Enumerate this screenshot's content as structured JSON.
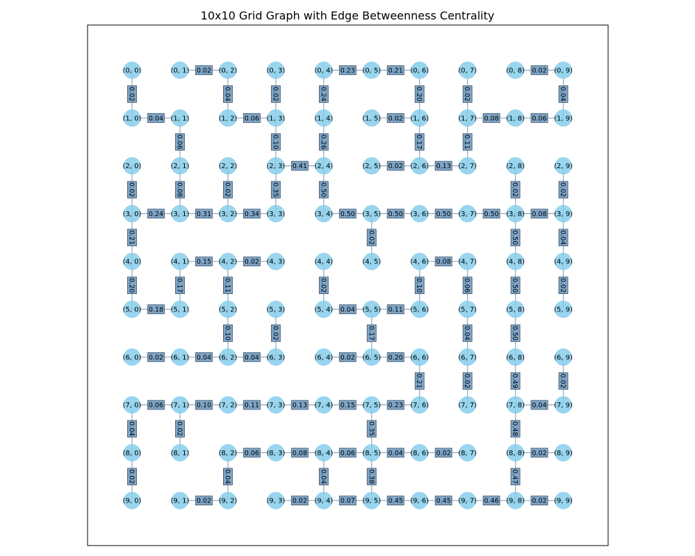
{
  "title": "10x10 Grid Graph with Edge Betweenness Centrality",
  "colors": {
    "node": "#87ceeb",
    "edge": "#8fa8bf",
    "label_box": "#7fa6c9",
    "frame": "#000000"
  },
  "nodes": [
    "(0, 0)",
    "(0, 1)",
    "(0, 2)",
    "(0, 3)",
    "(0, 4)",
    "(0, 5)",
    "(0, 6)",
    "(0, 7)",
    "(0, 8)",
    "(0, 9)",
    "(1, 0)",
    "(1, 1)",
    "(1, 2)",
    "(1, 3)",
    "(1, 4)",
    "(1, 5)",
    "(1, 6)",
    "(1, 7)",
    "(1, 8)",
    "(1, 9)",
    "(2, 0)",
    "(2, 1)",
    "(2, 2)",
    "(2, 3)",
    "(2, 4)",
    "(2, 5)",
    "(2, 6)",
    "(2, 7)",
    "(2, 8)",
    "(2, 9)",
    "(3, 0)",
    "(3, 1)",
    "(3, 2)",
    "(3, 3)",
    "(3, 4)",
    "(3, 5)",
    "(3, 6)",
    "(3, 7)",
    "(3, 8)",
    "(3, 9)",
    "(4, 0)",
    "(4, 1)",
    "(4, 2)",
    "(4, 3)",
    "(4, 4)",
    "(4, 5)",
    "(4, 6)",
    "(4, 7)",
    "(4, 8)",
    "(4, 9)",
    "(5, 0)",
    "(5, 1)",
    "(5, 2)",
    "(5, 3)",
    "(5, 4)",
    "(5, 5)",
    "(5, 6)",
    "(5, 7)",
    "(5, 8)",
    "(5, 9)",
    "(6, 0)",
    "(6, 1)",
    "(6, 2)",
    "(6, 3)",
    "(6, 4)",
    "(6, 5)",
    "(6, 6)",
    "(6, 7)",
    "(6, 8)",
    "(6, 9)",
    "(7, 0)",
    "(7, 1)",
    "(7, 2)",
    "(7, 3)",
    "(7, 4)",
    "(7, 5)",
    "(7, 6)",
    "(7, 7)",
    "(7, 8)",
    "(7, 9)",
    "(8, 0)",
    "(8, 1)",
    "(8, 2)",
    "(8, 3)",
    "(8, 4)",
    "(8, 5)",
    "(8, 6)",
    "(8, 7)",
    "(8, 8)",
    "(8, 9)",
    "(9, 0)",
    "(9, 1)",
    "(9, 2)",
    "(9, 3)",
    "(9, 4)",
    "(9, 5)",
    "(9, 6)",
    "(9, 7)",
    "(9, 8)",
    "(9, 9)"
  ],
  "horizontal_edges": [
    {
      "row": 0,
      "col": 1,
      "label": "0.02"
    },
    {
      "row": 0,
      "col": 4,
      "label": "0.23"
    },
    {
      "row": 0,
      "col": 5,
      "label": "0.21"
    },
    {
      "row": 0,
      "col": 8,
      "label": "0.02"
    },
    {
      "row": 1,
      "col": 0,
      "label": "0.04"
    },
    {
      "row": 1,
      "col": 2,
      "label": "0.06"
    },
    {
      "row": 1,
      "col": 5,
      "label": "0.02"
    },
    {
      "row": 1,
      "col": 7,
      "label": "0.08"
    },
    {
      "row": 1,
      "col": 8,
      "label": "0.06"
    },
    {
      "row": 2,
      "col": 3,
      "label": "0.41"
    },
    {
      "row": 2,
      "col": 5,
      "label": "0.02"
    },
    {
      "row": 2,
      "col": 6,
      "label": "0.13"
    },
    {
      "row": 3,
      "col": 0,
      "label": "0.24"
    },
    {
      "row": 3,
      "col": 1,
      "label": "0.31"
    },
    {
      "row": 3,
      "col": 2,
      "label": "0.34"
    },
    {
      "row": 3,
      "col": 4,
      "label": "0.50"
    },
    {
      "row": 3,
      "col": 5,
      "label": "0.50"
    },
    {
      "row": 3,
      "col": 6,
      "label": "0.50"
    },
    {
      "row": 3,
      "col": 7,
      "label": "0.50"
    },
    {
      "row": 3,
      "col": 8,
      "label": "0.08"
    },
    {
      "row": 4,
      "col": 1,
      "label": "0.15"
    },
    {
      "row": 4,
      "col": 2,
      "label": "0.02"
    },
    {
      "row": 4,
      "col": 6,
      "label": "0.08"
    },
    {
      "row": 5,
      "col": 0,
      "label": "0.18"
    },
    {
      "row": 5,
      "col": 4,
      "label": "0.04"
    },
    {
      "row": 5,
      "col": 5,
      "label": "0.11"
    },
    {
      "row": 6,
      "col": 0,
      "label": "0.02"
    },
    {
      "row": 6,
      "col": 1,
      "label": "0.04"
    },
    {
      "row": 6,
      "col": 2,
      "label": "0.04"
    },
    {
      "row": 6,
      "col": 4,
      "label": "0.02"
    },
    {
      "row": 6,
      "col": 5,
      "label": "0.20"
    },
    {
      "row": 7,
      "col": 0,
      "label": "0.06"
    },
    {
      "row": 7,
      "col": 1,
      "label": "0.10"
    },
    {
      "row": 7,
      "col": 2,
      "label": "0.11"
    },
    {
      "row": 7,
      "col": 3,
      "label": "0.13"
    },
    {
      "row": 7,
      "col": 4,
      "label": "0.15"
    },
    {
      "row": 7,
      "col": 5,
      "label": "0.23"
    },
    {
      "row": 7,
      "col": 8,
      "label": "0.04"
    },
    {
      "row": 8,
      "col": 2,
      "label": "0.06"
    },
    {
      "row": 8,
      "col": 3,
      "label": "0.08"
    },
    {
      "row": 8,
      "col": 4,
      "label": "0.06"
    },
    {
      "row": 8,
      "col": 5,
      "label": "0.04"
    },
    {
      "row": 8,
      "col": 6,
      "label": "0.02"
    },
    {
      "row": 8,
      "col": 8,
      "label": "0.02"
    },
    {
      "row": 9,
      "col": 1,
      "label": "0.02"
    },
    {
      "row": 9,
      "col": 3,
      "label": "0.02"
    },
    {
      "row": 9,
      "col": 4,
      "label": "0.07"
    },
    {
      "row": 9,
      "col": 5,
      "label": "0.45"
    },
    {
      "row": 9,
      "col": 6,
      "label": "0.45"
    },
    {
      "row": 9,
      "col": 7,
      "label": "0.46"
    },
    {
      "row": 9,
      "col": 8,
      "label": "0.02"
    }
  ],
  "vertical_edges": [
    {
      "row": 0,
      "col": 0,
      "label": "0.02"
    },
    {
      "row": 0,
      "col": 2,
      "label": "0.04"
    },
    {
      "row": 0,
      "col": 3,
      "label": "0.02"
    },
    {
      "row": 0,
      "col": 4,
      "label": "0.24"
    },
    {
      "row": 0,
      "col": 6,
      "label": "0.20"
    },
    {
      "row": 0,
      "col": 7,
      "label": "0.02"
    },
    {
      "row": 0,
      "col": 9,
      "label": "0.04"
    },
    {
      "row": 1,
      "col": 1,
      "label": "0.06"
    },
    {
      "row": 1,
      "col": 3,
      "label": "0.10"
    },
    {
      "row": 1,
      "col": 4,
      "label": "0.26"
    },
    {
      "row": 1,
      "col": 6,
      "label": "0.17"
    },
    {
      "row": 1,
      "col": 7,
      "label": "0.11"
    },
    {
      "row": 2,
      "col": 0,
      "label": "0.02"
    },
    {
      "row": 2,
      "col": 1,
      "label": "0.08"
    },
    {
      "row": 2,
      "col": 2,
      "label": "0.02"
    },
    {
      "row": 2,
      "col": 3,
      "label": "0.35"
    },
    {
      "row": 2,
      "col": 4,
      "label": "0.50"
    },
    {
      "row": 2,
      "col": 8,
      "label": "0.02"
    },
    {
      "row": 2,
      "col": 9,
      "label": "0.02"
    },
    {
      "row": 3,
      "col": 0,
      "label": "0.21"
    },
    {
      "row": 3,
      "col": 5,
      "label": "0.02"
    },
    {
      "row": 3,
      "col": 8,
      "label": "0.50"
    },
    {
      "row": 3,
      "col": 9,
      "label": "0.04"
    },
    {
      "row": 4,
      "col": 0,
      "label": "0.20"
    },
    {
      "row": 4,
      "col": 1,
      "label": "0.17"
    },
    {
      "row": 4,
      "col": 2,
      "label": "0.11"
    },
    {
      "row": 4,
      "col": 4,
      "label": "0.02"
    },
    {
      "row": 4,
      "col": 6,
      "label": "0.10"
    },
    {
      "row": 4,
      "col": 7,
      "label": "0.06"
    },
    {
      "row": 4,
      "col": 8,
      "label": "0.50"
    },
    {
      "row": 4,
      "col": 9,
      "label": "0.02"
    },
    {
      "row": 5,
      "col": 2,
      "label": "0.10"
    },
    {
      "row": 5,
      "col": 3,
      "label": "0.02"
    },
    {
      "row": 5,
      "col": 5,
      "label": "0.17"
    },
    {
      "row": 5,
      "col": 7,
      "label": "0.04"
    },
    {
      "row": 5,
      "col": 8,
      "label": "0.50"
    },
    {
      "row": 6,
      "col": 6,
      "label": "0.21"
    },
    {
      "row": 6,
      "col": 7,
      "label": "0.02"
    },
    {
      "row": 6,
      "col": 8,
      "label": "0.49"
    },
    {
      "row": 6,
      "col": 9,
      "label": "0.02"
    },
    {
      "row": 7,
      "col": 0,
      "label": "0.04"
    },
    {
      "row": 7,
      "col": 1,
      "label": "0.02"
    },
    {
      "row": 7,
      "col": 5,
      "label": "0.35"
    },
    {
      "row": 7,
      "col": 8,
      "label": "0.48"
    },
    {
      "row": 8,
      "col": 0,
      "label": "0.02"
    },
    {
      "row": 8,
      "col": 2,
      "label": "0.04"
    },
    {
      "row": 8,
      "col": 4,
      "label": "0.04"
    },
    {
      "row": 8,
      "col": 5,
      "label": "0.38"
    },
    {
      "row": 8,
      "col": 8,
      "label": "0.47"
    }
  ]
}
